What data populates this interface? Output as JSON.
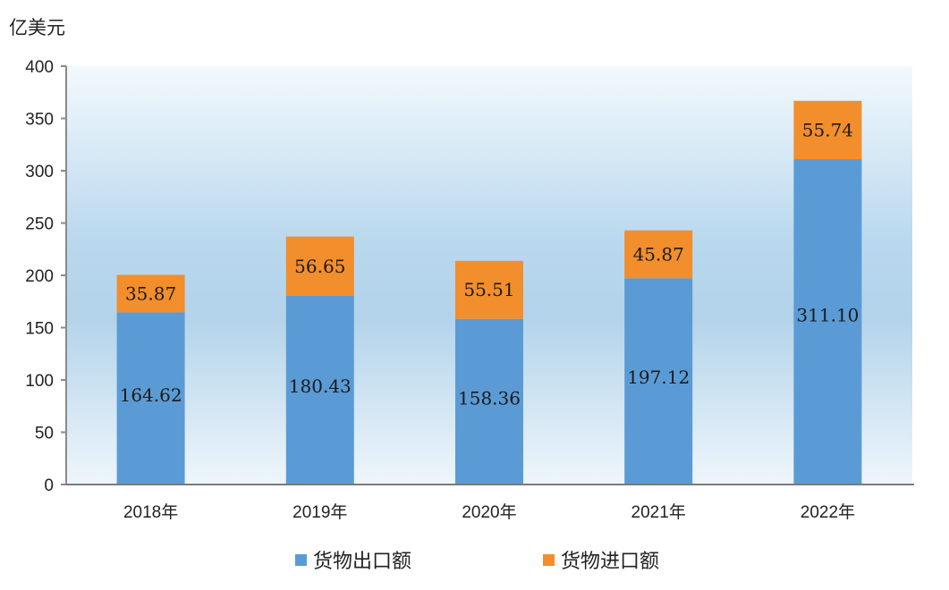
{
  "chart_data": {
    "type": "bar",
    "stacked": true,
    "unit_label": "亿美元",
    "categories": [
      "2018年",
      "2019年",
      "2020年",
      "2021年",
      "2022年"
    ],
    "series": [
      {
        "name": "货物出口额",
        "color": "#5b9bd5",
        "values": [
          164.62,
          180.43,
          158.36,
          197.12,
          311.1
        ],
        "labels": [
          "164.62",
          "180.43",
          "158.36",
          "197.12",
          "311.10"
        ]
      },
      {
        "name": "货物进口额",
        "color": "#f28e2b",
        "values": [
          35.87,
          56.65,
          55.51,
          45.87,
          55.74
        ],
        "labels": [
          "35.87",
          "56.65",
          "55.51",
          "45.87",
          "55.74"
        ]
      }
    ],
    "ylim": [
      0,
      400
    ],
    "yticks": [
      "0",
      "50",
      "100",
      "150",
      "200",
      "250",
      "300",
      "350",
      "400"
    ],
    "grid": false,
    "legend_position": "bottom"
  }
}
